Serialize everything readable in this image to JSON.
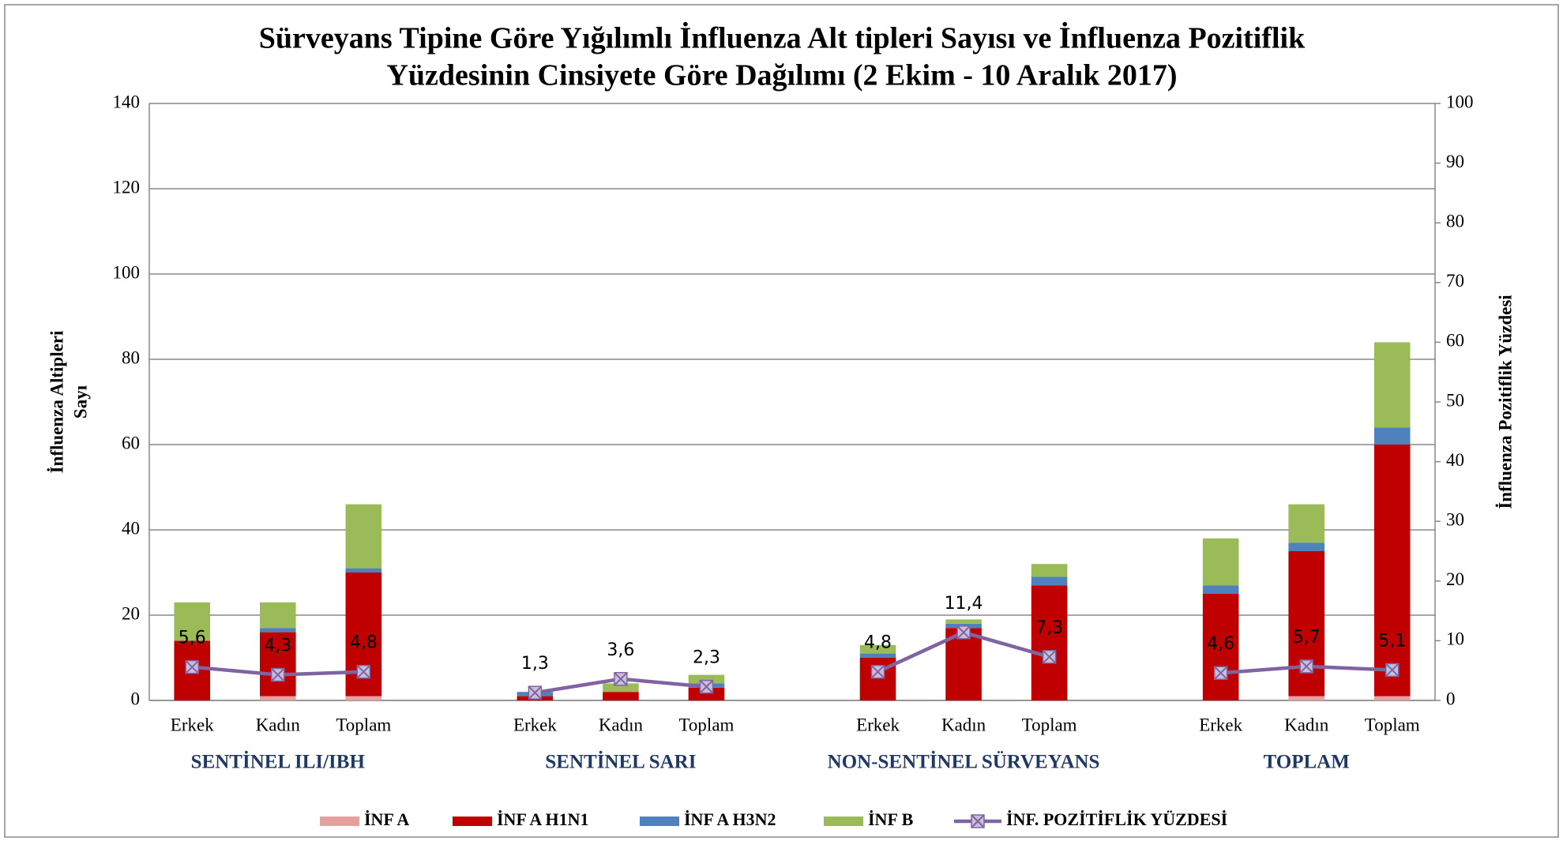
{
  "chart_data": {
    "type": "bar",
    "title": [
      "Sürveyans Tipine Göre Yığılımlı İnfluenza Alt tipleri Sayısı ve İnfluenza Pozitiflik",
      "Yüzdesinin Cinsiyete Göre Dağılımı (2 Ekim - 10 Aralık 2017)"
    ],
    "y_label": [
      "İnfluenza Altipleri",
      "Sayı"
    ],
    "y2_label": "İnfluenza Pozitiflik Yüzdesi",
    "stacked": true,
    "categories": [
      "Erkek",
      "Kadın",
      "Toplam",
      null,
      "Erkek",
      "Kadın",
      "Toplam",
      null,
      "Erkek",
      "Kadın",
      "Toplam",
      null,
      "Erkek",
      "Kadın",
      "Toplam"
    ],
    "groups": [
      "SENTİNEL ILI/IBH",
      "SENTİNEL SARI",
      "NON-SENTİNEL SÜRVEYANS",
      "TOPLAM"
    ],
    "series": [
      {
        "name": "İNF A",
        "color": "#e6a0a0",
        "values": [
          0,
          1,
          1,
          null,
          0,
          0,
          0,
          null,
          0,
          0,
          0,
          null,
          0,
          1,
          1
        ]
      },
      {
        "name": "İNF A H1N1",
        "color": "#c00000",
        "values": [
          14,
          15,
          29,
          null,
          1,
          2,
          3,
          null,
          10,
          17,
          27,
          null,
          25,
          34,
          59
        ]
      },
      {
        "name": "İNF A H3N2",
        "color": "#4f81bd",
        "values": [
          0,
          1,
          1,
          null,
          1,
          0,
          1,
          null,
          1,
          1,
          2,
          null,
          2,
          2,
          4
        ]
      },
      {
        "name": "İNF B",
        "color": "#9bbb59",
        "values": [
          9,
          6,
          15,
          null,
          0,
          2,
          2,
          null,
          2,
          1,
          3,
          null,
          11,
          9,
          20
        ]
      },
      {
        "name": "İNF. POZİTİFLİK YÜZDESİ",
        "type": "line",
        "axis": "y2",
        "color": "#8064a2",
        "values": [
          5.6,
          4.3,
          4.8,
          null,
          1.3,
          3.6,
          2.3,
          null,
          4.8,
          11.4,
          7.3,
          null,
          4.6,
          5.7,
          5.1
        ],
        "value_labels": [
          "5,6",
          "4,3",
          "4,8",
          null,
          "1,3",
          "3,6",
          "2,3",
          null,
          "4,8",
          "11,4",
          "7,3",
          null,
          "4,6",
          "5,7",
          "5,1"
        ]
      }
    ],
    "ylim": [
      0,
      140
    ],
    "yticks": [
      0,
      20,
      40,
      60,
      80,
      100,
      120,
      140
    ],
    "y2lim": [
      0,
      100
    ],
    "y2ticks": [
      0,
      10,
      20,
      30,
      40,
      50,
      60,
      70,
      80,
      90,
      100
    ],
    "grid": true,
    "legend": "bottom"
  }
}
